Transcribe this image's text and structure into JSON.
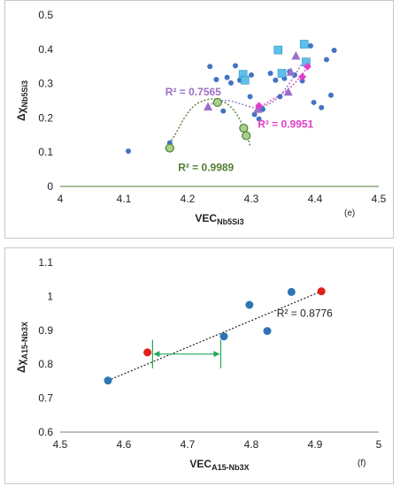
{
  "chart_data": [
    {
      "type": "scatter",
      "panel_tag": "(e)",
      "xlabel_main": "VEC",
      "xlabel_sub": "Nb5Si3",
      "ylabel_main": "Δχ",
      "ylabel_sub": "Nb5Si3",
      "xlim": [
        4,
        4.5
      ],
      "ylim": [
        0,
        0.5
      ],
      "xticks": [
        "4",
        "4.1",
        "4.2",
        "4.3",
        "4.4",
        "4.5"
      ],
      "yticks": [
        "0",
        "0.1",
        "0.2",
        "0.3",
        "0.4",
        "0.5"
      ],
      "grid": false,
      "colors": {
        "blue": "#4472c4",
        "cyan": "#5bc0eb",
        "purple": "#9b6fc8",
        "magenta": "#e040c8",
        "green": "#70ad47",
        "green_dark": "#507e32"
      },
      "series": [
        {
          "marker": "circle-small",
          "color": "#4472c4",
          "points": [
            [
              4.107,
              0.103
            ],
            [
              4.172,
              0.127
            ],
            [
              4.235,
              0.35
            ],
            [
              4.245,
              0.312
            ],
            [
              4.256,
              0.22
            ],
            [
              4.262,
              0.318
            ],
            [
              4.268,
              0.302
            ],
            [
              4.275,
              0.352
            ],
            [
              4.282,
              0.31
            ],
            [
              4.298,
              0.262
            ],
            [
              4.3,
              0.325
            ],
            [
              4.305,
              0.21
            ],
            [
              4.312,
              0.197
            ],
            [
              4.318,
              0.225
            ],
            [
              4.33,
              0.33
            ],
            [
              4.338,
              0.31
            ],
            [
              4.345,
              0.262
            ],
            [
              4.352,
              0.315
            ],
            [
              4.36,
              0.335
            ],
            [
              4.368,
              0.325
            ],
            [
              4.38,
              0.308
            ],
            [
              4.393,
              0.41
            ],
            [
              4.398,
              0.245
            ],
            [
              4.41,
              0.23
            ],
            [
              4.418,
              0.37
            ],
            [
              4.425,
              0.266
            ],
            [
              4.43,
              0.397
            ],
            [
              4.385,
              0.36
            ]
          ]
        },
        {
          "marker": "square",
          "color": "#5bc0eb",
          "points": [
            [
              4.287,
              0.327
            ],
            [
              4.29,
              0.31
            ],
            [
              4.342,
              0.398
            ],
            [
              4.348,
              0.33
            ],
            [
              4.383,
              0.415
            ],
            [
              4.386,
              0.363
            ]
          ]
        },
        {
          "marker": "triangle",
          "color": "#9b6fc8",
          "points": [
            [
              4.232,
              0.232
            ],
            [
              4.31,
              0.225
            ],
            [
              4.358,
              0.275
            ],
            [
              4.362,
              0.333
            ],
            [
              4.37,
              0.38
            ]
          ]
        },
        {
          "marker": "diamond",
          "color": "#e040c8",
          "points": [
            [
              4.312,
              0.235
            ],
            [
              4.38,
              0.32
            ],
            [
              4.388,
              0.35
            ]
          ]
        },
        {
          "marker": "circle-open",
          "color": "#70ad47",
          "points": [
            [
              4.172,
              0.112
            ],
            [
              4.247,
              0.245
            ],
            [
              4.288,
              0.17
            ],
            [
              4.292,
              0.148
            ]
          ]
        }
      ],
      "trendlines": [
        {
          "color": "#507e32",
          "r2": "R² = 0.9989",
          "points": [
            [
              4.165,
              0.108
            ],
            [
              4.18,
              0.15
            ],
            [
              4.195,
              0.2
            ],
            [
              4.21,
              0.235
            ],
            [
              4.225,
              0.25
            ],
            [
              4.24,
              0.255
            ],
            [
              4.255,
              0.248
            ],
            [
              4.27,
              0.228
            ],
            [
              4.282,
              0.195
            ],
            [
              4.292,
              0.152
            ],
            [
              4.298,
              0.12
            ]
          ]
        },
        {
          "color": "#9b6fc8",
          "r2": "R² = 0.7565",
          "points": [
            [
              4.228,
              0.228
            ],
            [
              4.245,
              0.247
            ],
            [
              4.265,
              0.25
            ],
            [
              4.285,
              0.24
            ],
            [
              4.305,
              0.23
            ],
            [
              4.325,
              0.238
            ],
            [
              4.345,
              0.265
            ],
            [
              4.365,
              0.315
            ],
            [
              4.38,
              0.36
            ]
          ]
        },
        {
          "color": "#e040c8",
          "r2": "R² = 0.9951",
          "points": [
            [
              4.31,
              0.228
            ],
            [
              4.33,
              0.25
            ],
            [
              4.35,
              0.272
            ],
            [
              4.37,
              0.305
            ],
            [
              4.39,
              0.352
            ]
          ]
        }
      ],
      "annotations": [
        {
          "text": "R² = 0.7565",
          "color": "#9b6fc8",
          "at": [
            4.165,
            0.265
          ]
        },
        {
          "text": "R² = 0.9951",
          "color": "#e040c8",
          "at": [
            4.31,
            0.172
          ]
        },
        {
          "text": "R² = 0.9989",
          "color": "#507e32",
          "at": [
            4.185,
            0.045
          ]
        }
      ]
    },
    {
      "type": "scatter",
      "panel_tag": "(f)",
      "xlabel_main": "VEC",
      "xlabel_sub": "A15-Nb3X",
      "ylabel_main": "Δχ",
      "ylabel_sub": "A15-Nb3X",
      "xlim": [
        4.5,
        5
      ],
      "ylim": [
        0.6,
        1.1
      ],
      "xticks": [
        "4.5",
        "4.6",
        "4.7",
        "4.8",
        "4.9",
        "5"
      ],
      "yticks": [
        "0.6",
        "0.7",
        "0.8",
        "0.9",
        "1",
        "1.1"
      ],
      "grid": false,
      "series": [
        {
          "marker": "circle",
          "color": "#2e75b6",
          "points": [
            [
              4.575,
              0.752
            ],
            [
              4.757,
              0.882
            ],
            [
              4.797,
              0.975
            ],
            [
              4.825,
              0.898
            ],
            [
              4.863,
              1.013
            ]
          ]
        },
        {
          "marker": "circle",
          "color": "#e0201a",
          "points": [
            [
              4.637,
              0.835
            ],
            [
              4.91,
              1.015
            ]
          ]
        }
      ],
      "trendline": {
        "color": "#222222",
        "r2": "R² = 0.8776",
        "from": [
          4.575,
          0.752
        ],
        "to": [
          4.91,
          1.015
        ]
      },
      "arrow": {
        "color": "#1fa85a",
        "x1": 4.645,
        "x2": 4.752,
        "y": 0.83,
        "ymin": 0.788,
        "ymax": 0.872
      }
    }
  ]
}
